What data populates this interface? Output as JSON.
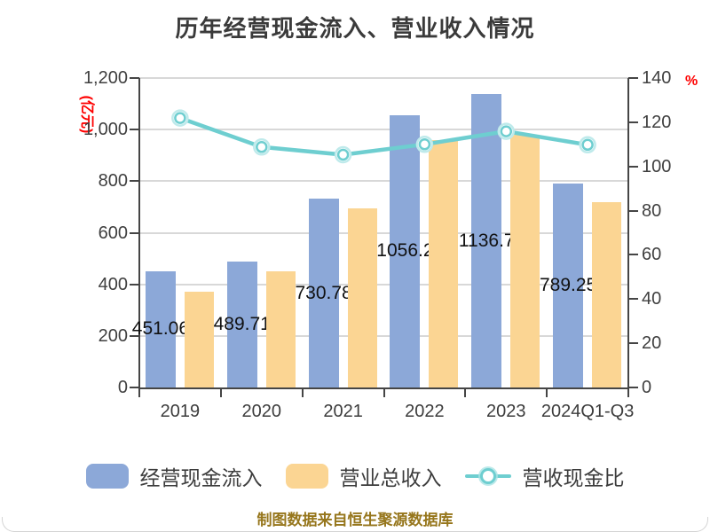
{
  "chart_data": {
    "type": "combo-bar-line",
    "title": "历年经营现金流入、营业收入情况",
    "categories": [
      "2019",
      "2020",
      "2021",
      "2022",
      "2023",
      "2024Q1-Q3"
    ],
    "series": [
      {
        "name": "经营现金流入",
        "kind": "bar",
        "axis": "left",
        "color": "#8CA8D8",
        "values": [
          451.06,
          489.71,
          730.78,
          1056.2,
          1136.7,
          789.25
        ],
        "labels": [
          "451.06",
          "489.71",
          "730.78",
          "1056.2",
          "1136.7",
          "789.25"
        ]
      },
      {
        "name": "营业总收入",
        "kind": "bar",
        "axis": "left",
        "color": "#FBD593",
        "values": [
          370,
          450,
          694,
          960,
          981,
          719
        ]
      },
      {
        "name": "营收现金比",
        "kind": "line",
        "axis": "right",
        "color": "#6ECED0",
        "values": [
          121.9,
          108.8,
          105.3,
          110.0,
          115.9,
          109.8
        ]
      }
    ],
    "left_axis": {
      "unit": "(亿元)",
      "unit_color": "#FE0000",
      "min": 0,
      "max": 1200,
      "ticks": [
        "0",
        "200",
        "400",
        "600",
        "800",
        "1,000",
        "1,200"
      ]
    },
    "right_axis": {
      "unit": "%",
      "unit_color": "#FE0000",
      "min": 0,
      "max": 140,
      "ticks": [
        "0",
        "20",
        "40",
        "60",
        "80",
        "100",
        "120",
        "140"
      ]
    },
    "grid": true,
    "legend_position": "bottom"
  },
  "footer": {
    "credit": "制图数据来自恒生聚源数据库"
  }
}
